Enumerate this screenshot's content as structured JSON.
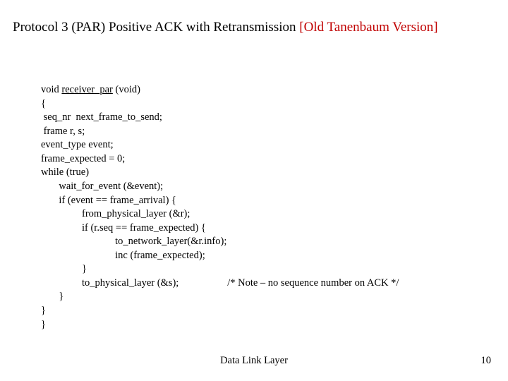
{
  "title": {
    "main": "Protocol 3 (PAR) Positive ACK with Retransmission ",
    "version": "[Old Tanenbaum Version]"
  },
  "code": {
    "l1a": "void ",
    "l1b": "receiver_par",
    "l1c": " (void)",
    "l2": "{",
    "l3": " seq_nr  next_frame_to_send;",
    "l4": " frame r, s;",
    "l5": "event_type event;",
    "l6": "frame_expected = 0;",
    "l7": "while (true)",
    "l8": "       wait_for_event (&event);",
    "l9": "       if (event == frame_arrival) {",
    "l10": "                from_physical_layer (&r);",
    "l11": "                if (r.seq == frame_expected) {",
    "l12": "                             to_network_layer(&r.info);",
    "l13": "                             inc (frame_expected);",
    "l14": "                }",
    "l15a": "                to_physical_layer (&s);                   ",
    "l15b": "/* Note – no sequence number on ACK */",
    "l16": "       }",
    "l17": "}",
    "l18": "}"
  },
  "footer": {
    "center": "Data Link Layer",
    "pageNumber": "10"
  },
  "colors": {
    "version": "#c00000",
    "text": "#000000",
    "background": "#ffffff"
  }
}
